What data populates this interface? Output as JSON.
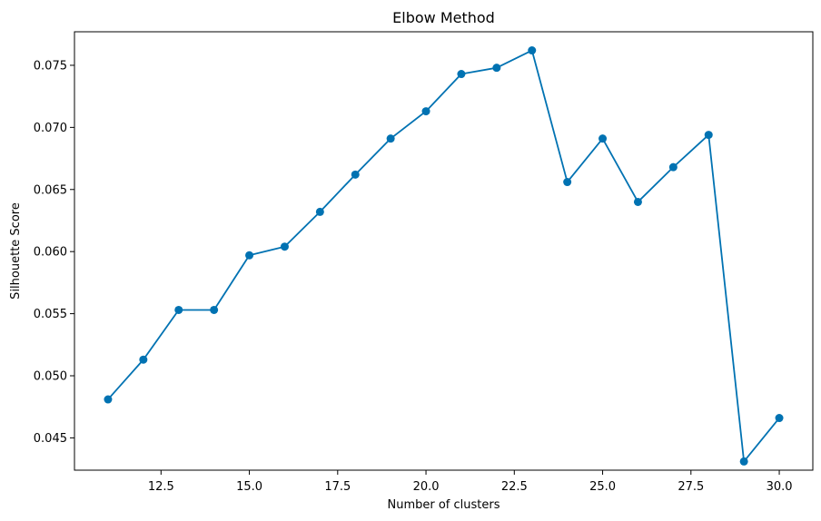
{
  "chart_data": {
    "type": "line",
    "title": "Elbow Method",
    "xlabel": "Number of clusters",
    "ylabel": "Silhouette Score",
    "xlim": [
      10.05,
      30.95
    ],
    "ylim": [
      0.0424,
      0.0777
    ],
    "grid": false,
    "x_ticks": [
      12.5,
      15.0,
      17.5,
      20.0,
      22.5,
      25.0,
      27.5,
      30.0
    ],
    "x_tick_labels": [
      "12.5",
      "15.0",
      "17.5",
      "20.0",
      "22.5",
      "25.0",
      "27.5",
      "30.0"
    ],
    "y_ticks": [
      0.045,
      0.05,
      0.055,
      0.06,
      0.065,
      0.07,
      0.075
    ],
    "y_tick_labels": [
      "0.045",
      "0.050",
      "0.055",
      "0.060",
      "0.065",
      "0.070",
      "0.075"
    ],
    "series": [
      {
        "color": "#0072b2",
        "marker": "circle",
        "x": [
          11,
          12,
          13,
          14,
          15,
          16,
          17,
          18,
          19,
          20,
          21,
          22,
          23,
          24,
          25,
          26,
          27,
          28,
          29,
          30
        ],
        "values": [
          0.0481,
          0.0513,
          0.0553,
          0.0553,
          0.0597,
          0.0604,
          0.0632,
          0.0662,
          0.0691,
          0.0713,
          0.0743,
          0.0748,
          0.0762,
          0.0656,
          0.0691,
          0.064,
          0.0668,
          0.0694,
          0.0431,
          0.0466
        ]
      }
    ]
  }
}
